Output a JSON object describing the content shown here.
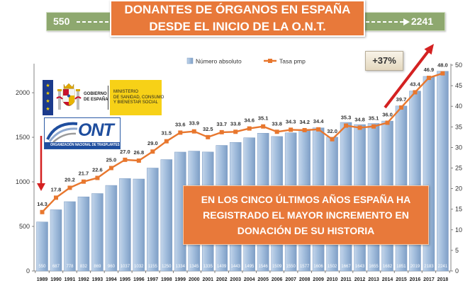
{
  "title": {
    "line1": "DONANTES DE ÓRGANOS EN ESPAÑA",
    "line2": "DESDE EL INICIO DE LA O.N.T."
  },
  "banner": {
    "start_value": "550",
    "end_value": "2241"
  },
  "callout": {
    "increase": "+37%"
  },
  "highlight_box": {
    "lines": [
      "EN LOS CINCO ÚLTIMOS AÑOS ESPAÑA HA",
      "REGISTRADO EL MAYOR INCREMENTO EN",
      "DONACIÓN DE SU HISTORIA"
    ]
  },
  "logos": {
    "gobierno": {
      "line1": "GOBIERNO",
      "line2": "DE ESPAÑA"
    },
    "ministerio": {
      "lines": [
        "MINISTERIO",
        "DE SANIDAD, CONSUMO",
        "Y BIENESTAR SOCIAL"
      ]
    },
    "ont": {
      "acronym": "ONT",
      "full_name": "ORGANIZACIÓN NACIONAL DE TRASPLANTES"
    }
  },
  "colors": {
    "accent_orange": "#e8793a",
    "bar_blue": "#9dbbdc",
    "line_orange": "#e8772e",
    "banner_green": "#8ea86f",
    "arrow_red": "#d42121"
  },
  "chart_data": {
    "type": "bar",
    "categories": [
      "1989",
      "1990",
      "1991",
      "1992",
      "1993",
      "1994",
      "1995",
      "1996",
      "1997",
      "1998",
      "1999",
      "2000",
      "2001",
      "2002",
      "2003",
      "2004",
      "2005",
      "2006",
      "2007",
      "2008",
      "2009",
      "2010",
      "2011",
      "2012",
      "2013",
      "2014",
      "2015",
      "2016",
      "2017",
      "2018"
    ],
    "series": [
      {
        "name": "Número absoluto",
        "type": "bar",
        "axis": "left",
        "values": [
          550,
          687,
          778,
          832,
          869,
          960,
          1037,
          1032,
          1155,
          1250,
          1334,
          1345,
          1335,
          1409,
          1443,
          1495,
          1546,
          1509,
          1550,
          1577,
          1606,
          1502,
          1667,
          1643,
          1655,
          1682,
          1851,
          2019,
          2183,
          2241
        ]
      },
      {
        "name": "Tasa pmp",
        "type": "line",
        "axis": "right",
        "values": [
          14.3,
          17.8,
          20.2,
          21.7,
          22.6,
          25.0,
          27.0,
          26.8,
          29.0,
          31.5,
          33.6,
          33.9,
          32.5,
          33.7,
          33.8,
          34.6,
          35.1,
          33.8,
          34.3,
          34.2,
          34.4,
          32.0,
          35.3,
          34.8,
          35.1,
          36.0,
          39.7,
          43.4,
          46.9,
          48.0
        ]
      }
    ],
    "left_axis": {
      "ylim": [
        0,
        2310
      ],
      "ticks": [
        0,
        500,
        1000,
        1500,
        2000
      ]
    },
    "right_axis": {
      "ylim": [
        0,
        50
      ],
      "ticks": [
        0,
        5,
        10,
        15,
        20,
        25,
        30,
        35,
        40,
        45,
        50
      ]
    },
    "data_labels": true,
    "legend": "top-center",
    "grid": false
  }
}
